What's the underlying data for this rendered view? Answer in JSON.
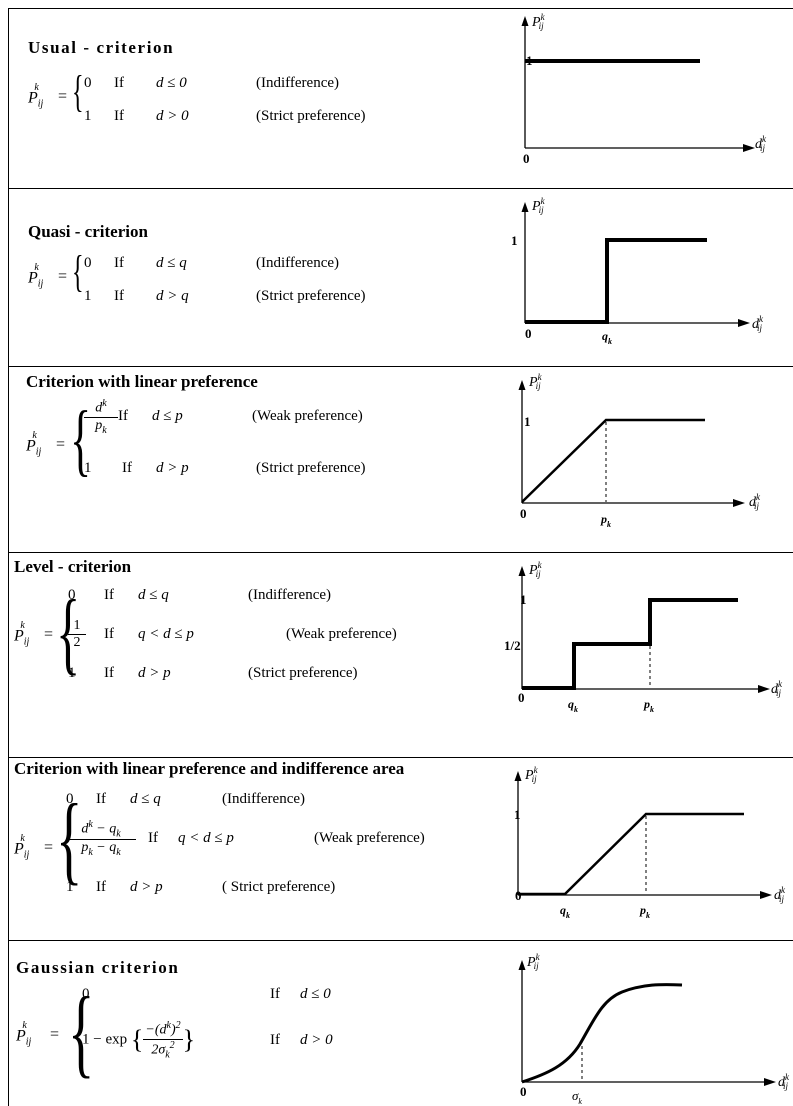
{
  "criteria": [
    {
      "title": "Usual - criterion",
      "formula_lhs": "P",
      "cases": [
        {
          "value": "0",
          "condition": "d ≤ 0",
          "note": "(Indifference)"
        },
        {
          "value": "1",
          "condition": "d > 0",
          "note": "(Strict preference)"
        }
      ],
      "graph": {
        "y_axis": "P",
        "x_axis": "d",
        "y_ticks": [
          "1"
        ],
        "origin": "0",
        "x_ticks": []
      }
    },
    {
      "title": "Quasi - criterion",
      "formula_lhs": "P",
      "cases": [
        {
          "value": "0",
          "condition": "d ≤ q",
          "note": "(Indifference)"
        },
        {
          "value": "1",
          "condition": "d > q",
          "note": "(Strict preference)"
        }
      ],
      "graph": {
        "y_axis": "P",
        "x_axis": "d",
        "y_ticks": [
          "1"
        ],
        "origin": "0",
        "x_ticks": [
          "q"
        ]
      }
    },
    {
      "title": "Criterion with linear preference",
      "formula_lhs": "P",
      "cases": [
        {
          "value": "d/p",
          "condition": "d ≤ p",
          "note": "(Weak preference)"
        },
        {
          "value": "1",
          "condition": "d > p",
          "note": "(Strict preference)"
        }
      ],
      "graph": {
        "y_axis": "P",
        "x_axis": "d",
        "y_ticks": [
          "1"
        ],
        "origin": "0",
        "x_ticks": [
          "p"
        ]
      }
    },
    {
      "title": "Level - criterion",
      "formula_lhs": "P",
      "cases": [
        {
          "value": "0",
          "condition": "d ≤ q",
          "note": "(Indifference)"
        },
        {
          "value": "1/2",
          "condition": "q < d ≤ p",
          "note": "(Weak preference)"
        },
        {
          "value": "1",
          "condition": "d > p",
          "note": "(Strict preference)"
        }
      ],
      "graph": {
        "y_axis": "P",
        "x_axis": "d",
        "y_ticks": [
          "1",
          "1/2"
        ],
        "origin": "0",
        "x_ticks": [
          "q",
          "p"
        ]
      }
    },
    {
      "title": "Criterion with linear preference and indifference area",
      "formula_lhs": "P",
      "cases": [
        {
          "value": "0",
          "condition": "d ≤ q",
          "note": "(Indifference)"
        },
        {
          "value": "(d − q)/(p − q)",
          "condition": "q < d ≤ p",
          "note": "(Weak preference)"
        },
        {
          "value": "1",
          "condition": "d > p",
          "note": "( Strict preference)"
        }
      ],
      "graph": {
        "y_axis": "P",
        "x_axis": "d",
        "y_ticks": [
          "1"
        ],
        "origin": "0",
        "x_ticks": [
          "q",
          "p"
        ]
      }
    },
    {
      "title": "Gaussian criterion",
      "formula_lhs": "P",
      "cases": [
        {
          "value": "0",
          "condition": "d ≤ 0",
          "note": ""
        },
        {
          "value": "1 − exp{−(d)²/(2σ²)}",
          "condition": "d > 0",
          "note": ""
        }
      ],
      "graph": {
        "y_axis": "P",
        "x_axis": "d",
        "y_ticks": [],
        "origin": "0",
        "x_ticks": [
          "σ"
        ]
      }
    }
  ],
  "labels": {
    "if": "If",
    "sup_k": "k",
    "sub_ij": "ij",
    "sub_k": "k",
    "q": "q",
    "p": "p",
    "d": "d",
    "sigma": "σ",
    "one": "1",
    "zero": "0",
    "half": "1/2",
    "eq": "=",
    "minus": "−",
    "two": "2",
    "exp": "exp"
  }
}
